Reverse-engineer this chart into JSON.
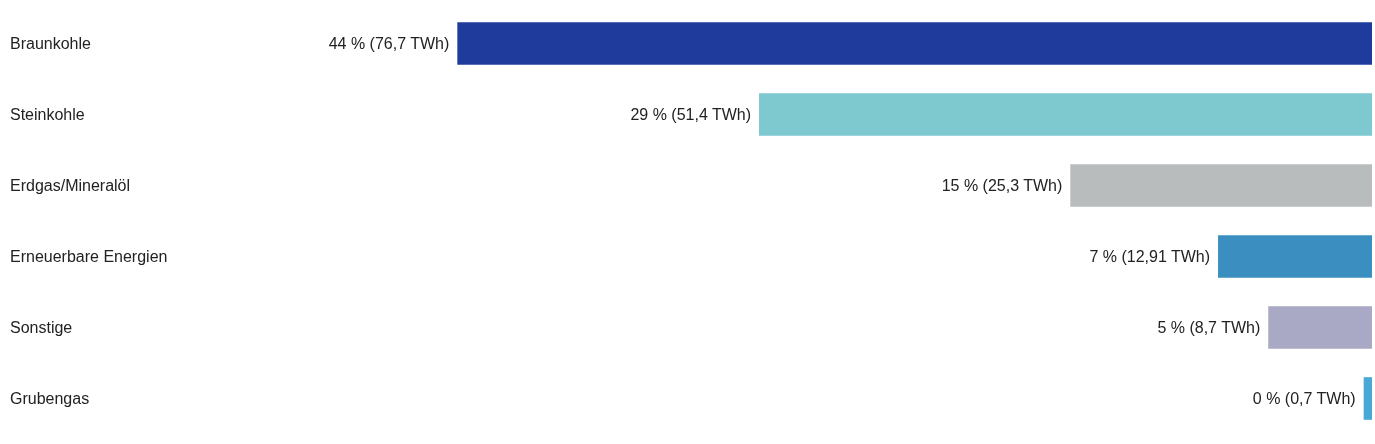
{
  "chart_data": {
    "type": "bar",
    "orientation": "horizontal",
    "categories": [
      "Braunkohle",
      "Steinkohle",
      "Erdgas/Mineralöl",
      "Erneuerbare Energien",
      "Sonstige",
      "Grubengas"
    ],
    "values": [
      76.7,
      51.4,
      25.3,
      12.91,
      8.7,
      0.7
    ],
    "colors": [
      "#1f3c9c",
      "#7ec8cf",
      "#b9bcbd",
      "#3b8fc0",
      "#a9a9c6",
      "#4aa8d6"
    ],
    "value_labels": [
      "44 % (76,7 TWh)",
      "29 % (51,4 TWh)",
      "15 % (25,3 TWh)",
      "7 % (12,91 TWh)",
      "5 % (8,7 TWh)",
      "0 % (0,7 TWh)"
    ],
    "tick_labels": "y"
  }
}
